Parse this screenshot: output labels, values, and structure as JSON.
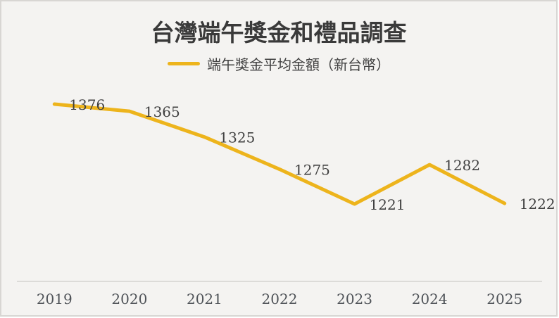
{
  "title": "台灣端午獎金和禮品調查",
  "legend": {
    "marker": "line-swatch",
    "label": "端午獎金平均金額（新台幣）"
  },
  "colors": {
    "line": "#edb41c",
    "title_text": "#3a3a3a",
    "data_label": "#404040",
    "axis_label": "#4f5358",
    "axis_line": "#dcdbd8",
    "background": "#f4f3f1",
    "frame_border": "#d8d6d3"
  },
  "chart_data": {
    "type": "line",
    "title": "台灣端午獎金和禮品調查",
    "categories": [
      "2019",
      "2020",
      "2021",
      "2022",
      "2023",
      "2024",
      "2025"
    ],
    "series": [
      {
        "name": "端午獎金平均金額（新台幣）",
        "values": [
          1376,
          1365,
          1325,
          1275,
          1221,
          1282,
          1222
        ]
      }
    ],
    "xlabel": "",
    "ylabel": "",
    "data_labels": [
      1376,
      1365,
      1325,
      1275,
      1221,
      1282,
      1222
    ],
    "legend_position": "top",
    "grid": false,
    "y_axis_visible": false,
    "x_axis_visible": true
  }
}
